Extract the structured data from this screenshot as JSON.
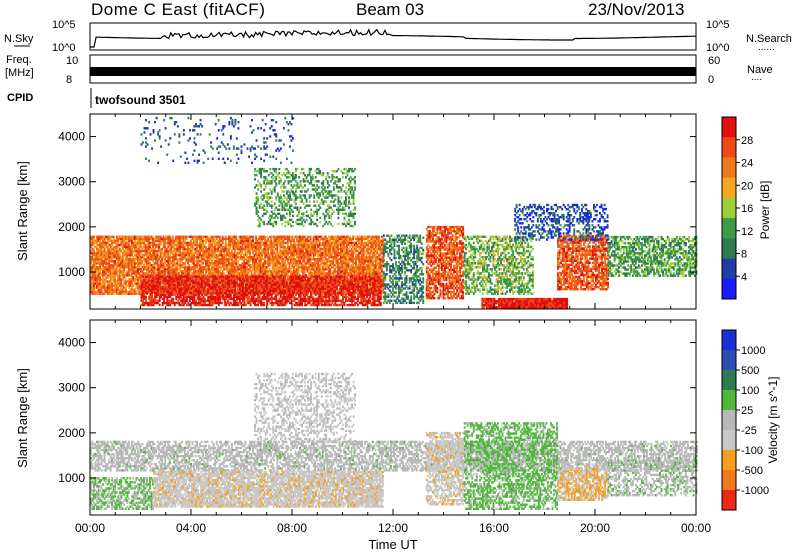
{
  "header": {
    "station": "Dome C East (fitACF)",
    "beam": "Beam 03",
    "date": "23/Nov/2013"
  },
  "left_labels": {
    "nsky": "N.Sky",
    "freq_line1": "Freq.",
    "freq_line2": "[MHz]",
    "cpid": "CPID"
  },
  "right_labels": {
    "nsearch": "N.Search",
    "nave": "Nave",
    "dots": "......",
    "dots2": "...."
  },
  "noise_axis": {
    "top": "10^5",
    "bottom": "10^0"
  },
  "freq_axis": {
    "top": "10",
    "bottom": "8"
  },
  "nave_axis": {
    "top": "60",
    "bottom": "0"
  },
  "cpid_text": "twofsound 3501",
  "colors": {
    "power": [
      "#1a1aff",
      "#1f3ea6",
      "#2f7a4e",
      "#3f9a4a",
      "#9ccf3a",
      "#f5a623",
      "#f07a1a",
      "#ee4a16",
      "#e01010"
    ],
    "velocity": [
      "#1a2fd6",
      "#2a4fb0",
      "#2f7a4e",
      "#4fb83a",
      "#b8b8b8",
      "#c8c8c8",
      "#f5a020",
      "#f07a1a",
      "#ea2a14"
    ],
    "ground_scatter": "#a8a8a8"
  },
  "chart_data": [
    {
      "type": "heatmap",
      "panel": "power",
      "ylabel": "Slant Range [km]",
      "yticks": [
        1000,
        2000,
        3000,
        4000
      ],
      "ylim": [
        180,
        4500
      ],
      "xlim": [
        0,
        24
      ],
      "colorbar": {
        "label": "Power [dB]",
        "ticks": [
          "4",
          "8",
          "12",
          "16",
          "20",
          "24",
          "28"
        ],
        "range": [
          0,
          32
        ]
      },
      "regions": [
        {
          "t0": 0,
          "t1": 11.6,
          "r0": 500,
          "r1": 1800,
          "value": 24,
          "density": 0.85
        },
        {
          "t0": 2.0,
          "t1": 11.5,
          "r0": 250,
          "r1": 900,
          "value": 30,
          "density": 0.75
        },
        {
          "t0": 11.6,
          "t1": 13.2,
          "r0": 300,
          "r1": 1800,
          "value": 10,
          "density": 0.5
        },
        {
          "t0": 13.3,
          "t1": 14.8,
          "r0": 400,
          "r1": 2000,
          "value": 26,
          "density": 0.7
        },
        {
          "t0": 14.8,
          "t1": 17.5,
          "r0": 500,
          "r1": 1800,
          "value": 14,
          "density": 0.55
        },
        {
          "t0": 15.5,
          "t1": 18.9,
          "r0": 200,
          "r1": 420,
          "value": 30,
          "density": 0.95
        },
        {
          "t0": 18.5,
          "t1": 20.5,
          "r0": 600,
          "r1": 1800,
          "value": 26,
          "density": 0.75
        },
        {
          "t0": 20.5,
          "t1": 24,
          "r0": 900,
          "r1": 1800,
          "value": 12,
          "density": 0.6
        },
        {
          "t0": 6.5,
          "t1": 10.5,
          "r0": 2000,
          "r1": 3300,
          "value": 12,
          "density": 0.35
        },
        {
          "t0": 16.8,
          "t1": 20.5,
          "r0": 1700,
          "r1": 2500,
          "value": 6,
          "density": 0.35
        },
        {
          "t0": 2.0,
          "t1": 8.0,
          "r0": 3400,
          "r1": 4400,
          "value": 5,
          "density": 0.08
        }
      ]
    },
    {
      "type": "heatmap",
      "panel": "velocity",
      "ylabel": "Slant Range [km]",
      "xlabel": "Time UT",
      "xticks": [
        "00:00",
        "04:00",
        "08:00",
        "12:00",
        "16:00",
        "20:00",
        "00:00"
      ],
      "yticks": [
        1000,
        2000,
        3000,
        4000
      ],
      "ylim": [
        180,
        4500
      ],
      "xlim": [
        0,
        24
      ],
      "colorbar": {
        "label": "Velocity [m s^-1]",
        "ticks": [
          "1000",
          "500",
          "100",
          "25",
          "-25",
          "-100",
          "-500",
          "-1000"
        ],
        "range": [
          -1200,
          1200
        ]
      },
      "regions": [
        {
          "t0": 0,
          "t1": 24,
          "r0": 1150,
          "r1": 1800,
          "value": 0,
          "density": 0.6
        },
        {
          "t0": 0,
          "t1": 2.5,
          "r0": 300,
          "r1": 1000,
          "value": 150,
          "density": 0.6
        },
        {
          "t0": 2.5,
          "t1": 11.6,
          "r0": 350,
          "r1": 1150,
          "value": -300,
          "density": 0.85
        },
        {
          "t0": 6.5,
          "t1": 10.5,
          "r0": 1800,
          "r1": 3300,
          "value": -150,
          "density": 0.35
        },
        {
          "t0": 13.3,
          "t1": 14.8,
          "r0": 400,
          "r1": 2000,
          "value": -300,
          "density": 0.6
        },
        {
          "t0": 14.8,
          "t1": 18.5,
          "r0": 300,
          "r1": 2200,
          "value": 200,
          "density": 0.55
        },
        {
          "t0": 18.5,
          "t1": 20.5,
          "r0": 500,
          "r1": 1200,
          "value": -400,
          "density": 0.75
        },
        {
          "t0": 20.5,
          "t1": 24,
          "r0": 600,
          "r1": 1400,
          "value": 60,
          "density": 0.45
        }
      ]
    }
  ]
}
